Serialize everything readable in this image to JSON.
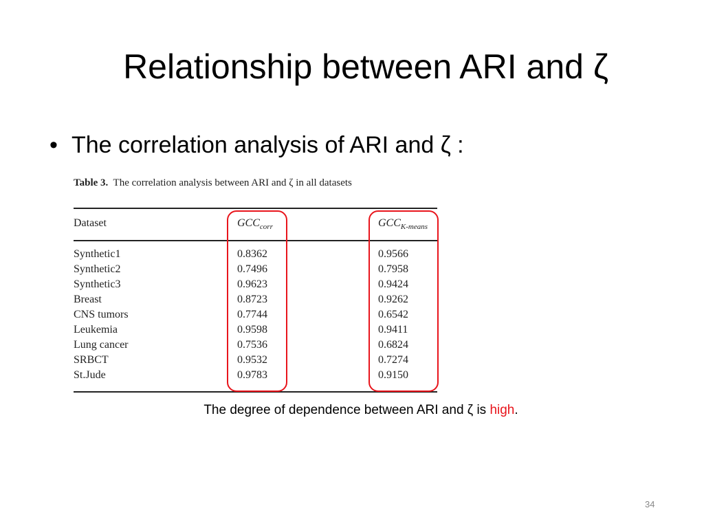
{
  "title": "Relationship between ARI and ζ",
  "bullet": "The correlation analysis of ARI and ζ :",
  "table": {
    "label": "Table 3.",
    "caption": "The correlation analysis between ARI and ζ in all datasets",
    "header": [
      "Dataset",
      {
        "base": "GCC",
        "sub": "corr"
      },
      {
        "base": "GCC",
        "sub": "K-means"
      }
    ],
    "rows": [
      [
        "Synthetic1",
        "0.8362",
        "0.9566"
      ],
      [
        "Synthetic2",
        "0.7496",
        "0.7958"
      ],
      [
        "Synthetic3",
        "0.9623",
        "0.9424"
      ],
      [
        "Breast",
        "0.8723",
        "0.9262"
      ],
      [
        "CNS tumors",
        "0.7744",
        "0.6542"
      ],
      [
        "Leukemia",
        "0.9598",
        "0.9411"
      ],
      [
        "Lung cancer",
        "0.7536",
        "0.6824"
      ],
      [
        "SRBCT",
        "0.9532",
        "0.7274"
      ],
      [
        "St.Jude",
        "0.9783",
        "0.9150"
      ]
    ]
  },
  "note": [
    "The degree of dependence between ARI and ζ is",
    "high",
    "."
  ],
  "page_number": "34"
}
